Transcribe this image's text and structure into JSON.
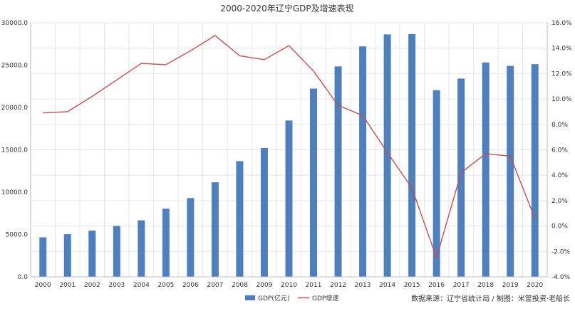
{
  "chart_data": {
    "type": "bar",
    "title": "2000-2020年辽宁GDP及增速表现",
    "categories": [
      "2000",
      "2001",
      "2002",
      "2003",
      "2004",
      "2005",
      "2006",
      "2007",
      "2008",
      "2009",
      "2010",
      "2011",
      "2012",
      "2013",
      "2014",
      "2015",
      "2016",
      "2017",
      "2018",
      "2019",
      "2020"
    ],
    "series": [
      {
        "name": "GDP(亿元)",
        "type": "bar",
        "axis": "left",
        "color": "#4f7fbf",
        "values": [
          4669,
          5033,
          5458,
          6003,
          6672,
          8047,
          9305,
          11164,
          13668,
          15212,
          18457,
          22226,
          24846,
          27213,
          28627,
          28669,
          22038,
          23409,
          25315,
          24909,
          25115
        ]
      },
      {
        "name": "GDP增速",
        "type": "line",
        "axis": "right",
        "color": "#c0504d",
        "values": [
          8.9,
          9.0,
          10.2,
          11.5,
          12.8,
          12.7,
          13.8,
          15.0,
          13.4,
          13.1,
          14.2,
          12.2,
          9.5,
          8.7,
          5.8,
          3.0,
          -2.5,
          4.2,
          5.7,
          5.5,
          0.6
        ]
      }
    ],
    "y_left": {
      "min": 0,
      "max": 30000,
      "ticks": [
        "0.0",
        "5000.0",
        "10000.0",
        "15000.0",
        "20000.0",
        "25000.0",
        "30000.0"
      ]
    },
    "y_right": {
      "min": -4,
      "max": 16,
      "ticks": [
        "-4.0%",
        "-2.0%",
        "0.0%",
        "2.0%",
        "4.0%",
        "6.0%",
        "8.0%",
        "10.0%",
        "12.0%",
        "14.0%",
        "16.0%"
      ]
    },
    "grid": true,
    "legend_position": "bottom-center"
  },
  "source_note": "数据来源：辽宁省统计局 / 制图：米筐投资·老船长",
  "colors": {
    "bar": "#4f7fbf",
    "line": "#c0504d",
    "grid": "#e6e6e6",
    "axis": "#bbbbbb"
  }
}
